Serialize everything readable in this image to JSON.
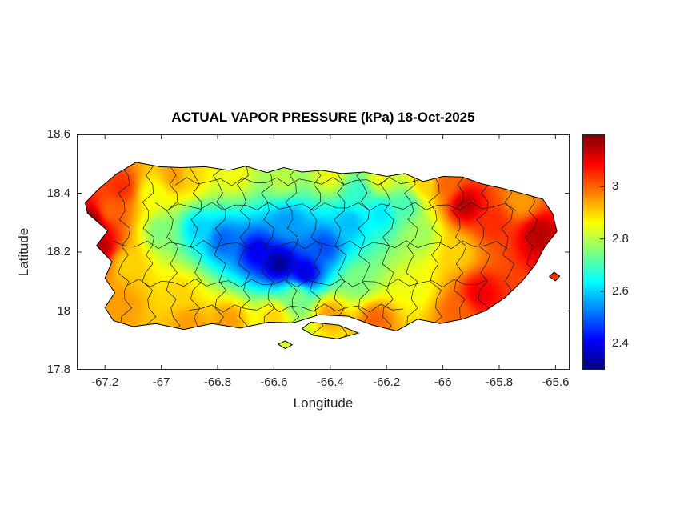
{
  "chart_data": {
    "type": "heatmap",
    "title": "ACTUAL VAPOR PRESSURE (kPa) 18-Oct-2025",
    "xlabel": "Longitude",
    "ylabel": "Latitude",
    "region": "Puerto Rico",
    "units": "kPa",
    "colormap": "jet",
    "grid": false,
    "xlim": [
      -67.3,
      -65.55
    ],
    "ylim": [
      17.8,
      18.6
    ],
    "xticks": [
      -67.2,
      -67,
      -66.8,
      -66.6,
      -66.4,
      -66.2,
      -66,
      -65.8,
      -65.6
    ],
    "yticks": [
      17.8,
      18,
      18.2,
      18.4,
      18.6
    ],
    "clim": [
      2.3,
      3.2
    ],
    "colorbar_ticks": [
      2.4,
      2.6,
      2.8,
      3
    ],
    "samples_format": [
      "lon",
      "lat",
      "kPa"
    ],
    "samples": [
      [
        -67.25,
        18.3,
        3.2
      ],
      [
        -67.22,
        18.22,
        3.15
      ],
      [
        -67.14,
        18.42,
        3.05
      ],
      [
        -67.18,
        18.34,
        3.0
      ],
      [
        -67.03,
        18.4,
        2.85
      ],
      [
        -66.95,
        18.46,
        2.95
      ],
      [
        -67.0,
        18.27,
        2.75
      ],
      [
        -67.12,
        18.16,
        2.9
      ],
      [
        -67.14,
        18.02,
        2.95
      ],
      [
        -66.93,
        18.06,
        2.9
      ],
      [
        -66.58,
        18.16,
        2.32
      ],
      [
        -66.49,
        18.13,
        2.38
      ],
      [
        -66.66,
        18.2,
        2.4
      ],
      [
        -66.78,
        18.24,
        2.5
      ],
      [
        -66.87,
        18.28,
        2.6
      ],
      [
        -66.42,
        18.22,
        2.48
      ],
      [
        -66.55,
        18.3,
        2.55
      ],
      [
        -66.33,
        18.3,
        2.58
      ],
      [
        -66.22,
        18.33,
        2.62
      ],
      [
        -66.3,
        18.4,
        2.68
      ],
      [
        -66.13,
        18.36,
        2.7
      ],
      [
        -66.9,
        18.46,
        2.9
      ],
      [
        -66.74,
        18.46,
        2.85
      ],
      [
        -66.57,
        18.45,
        2.8
      ],
      [
        -66.4,
        18.46,
        2.85
      ],
      [
        -66.22,
        18.45,
        2.85
      ],
      [
        -66.06,
        18.43,
        2.9
      ],
      [
        -65.92,
        18.36,
        3.15
      ],
      [
        -65.99,
        18.43,
        3.0
      ],
      [
        -65.82,
        18.3,
        3.05
      ],
      [
        -65.66,
        18.26,
        3.15
      ],
      [
        -65.72,
        18.37,
        2.95
      ],
      [
        -65.95,
        18.2,
        2.9
      ],
      [
        -66.08,
        18.26,
        2.78
      ],
      [
        -65.87,
        18.06,
        3.1
      ],
      [
        -65.95,
        18.0,
        3.0
      ],
      [
        -66.1,
        18.08,
        2.85
      ],
      [
        -66.24,
        17.97,
        3.0
      ],
      [
        -66.4,
        17.99,
        2.95
      ],
      [
        -66.6,
        17.98,
        2.9
      ],
      [
        -66.76,
        17.97,
        2.95
      ],
      [
        -66.9,
        17.96,
        2.95
      ],
      [
        -66.3,
        18.1,
        2.75
      ],
      [
        -66.52,
        18.05,
        2.75
      ]
    ],
    "outline": [
      [
        -67.16,
        18.465
      ],
      [
        -67.09,
        18.505
      ],
      [
        -67.005,
        18.49
      ],
      [
        -66.93,
        18.487
      ],
      [
        -66.845,
        18.49
      ],
      [
        -66.76,
        18.478
      ],
      [
        -66.7,
        18.492
      ],
      [
        -66.625,
        18.47
      ],
      [
        -66.565,
        18.487
      ],
      [
        -66.5,
        18.472
      ],
      [
        -66.43,
        18.478
      ],
      [
        -66.36,
        18.467
      ],
      [
        -66.28,
        18.472
      ],
      [
        -66.2,
        18.457
      ],
      [
        -66.135,
        18.467
      ],
      [
        -66.07,
        18.44
      ],
      [
        -66.0,
        18.457
      ],
      [
        -65.93,
        18.455
      ],
      [
        -65.862,
        18.432
      ],
      [
        -65.79,
        18.417
      ],
      [
        -65.71,
        18.397
      ],
      [
        -65.645,
        18.38
      ],
      [
        -65.61,
        18.33
      ],
      [
        -65.595,
        18.27
      ],
      [
        -65.64,
        18.215
      ],
      [
        -65.67,
        18.16
      ],
      [
        -65.72,
        18.1
      ],
      [
        -65.78,
        18.045
      ],
      [
        -65.85,
        18.0
      ],
      [
        -65.93,
        17.972
      ],
      [
        -66.01,
        17.957
      ],
      [
        -66.09,
        17.972
      ],
      [
        -66.165,
        17.932
      ],
      [
        -66.25,
        17.952
      ],
      [
        -66.335,
        17.982
      ],
      [
        -66.44,
        17.987
      ],
      [
        -66.53,
        17.96
      ],
      [
        -66.62,
        17.962
      ],
      [
        -66.72,
        17.942
      ],
      [
        -66.82,
        17.957
      ],
      [
        -66.92,
        17.937
      ],
      [
        -67.02,
        17.957
      ],
      [
        -67.1,
        17.947
      ],
      [
        -67.17,
        17.967
      ],
      [
        -67.2,
        18.012
      ],
      [
        -67.165,
        18.062
      ],
      [
        -67.2,
        18.112
      ],
      [
        -67.175,
        18.167
      ],
      [
        -67.23,
        18.222
      ],
      [
        -67.19,
        18.272
      ],
      [
        -67.262,
        18.332
      ],
      [
        -67.27,
        18.367
      ],
      [
        -67.225,
        18.412
      ]
    ],
    "islets": [
      [
        [
          -66.47,
          17.962
        ],
        [
          -66.37,
          17.952
        ],
        [
          -66.3,
          17.925
        ],
        [
          -66.375,
          17.905
        ],
        [
          -66.46,
          17.917
        ],
        [
          -66.5,
          17.94
        ]
      ],
      [
        [
          -66.56,
          17.898
        ],
        [
          -66.535,
          17.885
        ],
        [
          -66.56,
          17.872
        ],
        [
          -66.585,
          17.887
        ]
      ],
      [
        [
          -65.605,
          18.132
        ],
        [
          -65.585,
          18.118
        ],
        [
          -65.6,
          18.102
        ],
        [
          -65.622,
          18.117
        ]
      ]
    ],
    "boundaries": {
      "vertical_lons": [
        -67.13,
        -67.045,
        -66.96,
        -66.875,
        -66.79,
        -66.705,
        -66.62,
        -66.535,
        -66.45,
        -66.365,
        -66.28,
        -66.195,
        -66.11,
        -66.025,
        -65.94,
        -65.855,
        -65.77,
        -65.685
      ],
      "horizontal": [
        [
          18.355,
          -67.02,
          -65.7
        ],
        [
          18.225,
          -67.17,
          -65.73
        ],
        [
          18.095,
          -67.12,
          -65.8
        ],
        [
          18.44,
          -66.95,
          -66.05
        ],
        [
          18.01,
          -66.9,
          -66.1
        ]
      ]
    }
  }
}
